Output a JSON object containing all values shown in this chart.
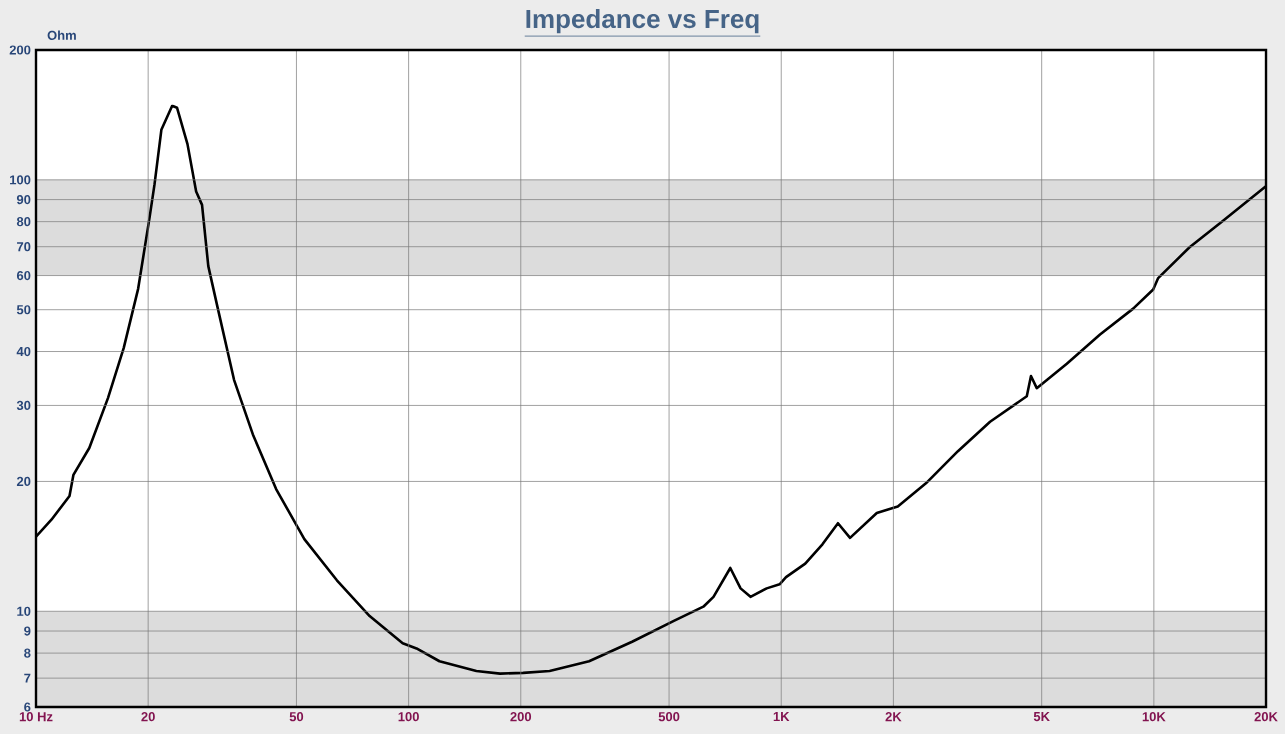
{
  "chart_data": {
    "type": "line",
    "title": "Impedance vs Freq",
    "ylabel": "Ohm",
    "x": [
      10,
      11.0,
      12.3,
      12.6,
      13.9,
      15.6,
      17.2,
      18.8,
      20.2,
      20.8,
      21.7,
      23.2,
      23.9,
      25.5,
      26.9,
      27.9,
      29.0,
      30.7,
      34.0,
      38.2,
      44.1,
      52.5,
      64.2,
      78.6,
      96.4,
      105,
      121,
      152,
      176,
      203,
      239,
      305,
      398,
      515,
      620,
      658,
      730,
      778,
      827,
      914,
      990,
      1030,
      1160,
      1290,
      1420,
      1530,
      1805,
      2055,
      2445,
      2980,
      3635,
      4560,
      4680,
      4850,
      5840,
      7170,
      8800,
      9960,
      10270,
      12470,
      15250,
      19950
    ],
    "values": [
      14.9,
      16.3,
      18.5,
      20.7,
      23.9,
      31.2,
      40.8,
      55.9,
      82.4,
      97.6,
      130.6,
      148.5,
      147,
      121,
      94,
      87.5,
      63.1,
      50.7,
      34.4,
      25.7,
      19.2,
      14.7,
      11.8,
      9.75,
      8.43,
      8.2,
      7.66,
      7.27,
      7.17,
      7.2,
      7.27,
      7.66,
      8.5,
      9.5,
      10.27,
      10.8,
      12.6,
      11.3,
      10.8,
      11.3,
      11.55,
      12.0,
      12.9,
      14.3,
      16.0,
      14.8,
      16.9,
      17.5,
      19.8,
      23.5,
      27.5,
      31.5,
      35.1,
      32.9,
      37.5,
      43.8,
      50.3,
      55.7,
      59.2,
      69.8,
      80.1,
      96.5
    ],
    "color": "#000000",
    "xlim": [
      10,
      20000
    ],
    "ylim": [
      6,
      200
    ],
    "log": "xy",
    "grid": true,
    "xticks": [
      {
        "value": 10,
        "label": "10 Hz"
      },
      20,
      50,
      100,
      200,
      500,
      {
        "value": 1000,
        "label": "1K"
      },
      {
        "value": 2000,
        "label": "2K"
      },
      {
        "value": 5000,
        "label": "5K"
      },
      {
        "value": 10000,
        "label": "10K"
      },
      {
        "value": 20000,
        "label": "20K"
      }
    ],
    "yticks": [
      6,
      7,
      8,
      9,
      10,
      20,
      30,
      40,
      50,
      60,
      70,
      80,
      90,
      100,
      200
    ],
    "bands": [
      {
        "axis": "y",
        "from": 6,
        "to": 10,
        "color": "#dcdcdc"
      },
      {
        "axis": "y",
        "from": 60,
        "to": 100,
        "color": "#dcdcdc"
      }
    ]
  }
}
